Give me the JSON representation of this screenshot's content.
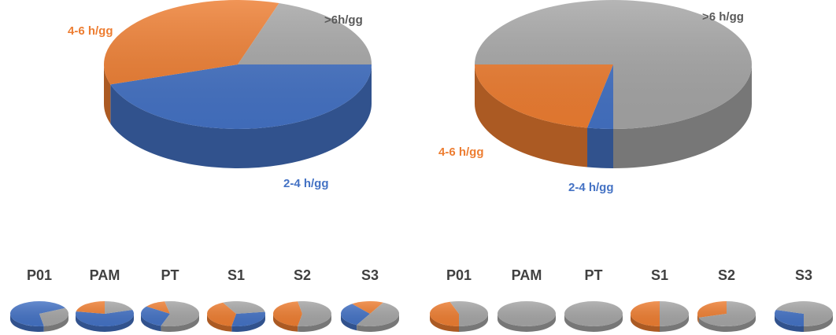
{
  "colors": {
    "2-4 h/gg": "#4472C4",
    "4-6 h/gg": "#ED7D31",
    ">6 h/gg": "#A5A5A5"
  },
  "chart_data": [
    {
      "type": "pie",
      "style": "3d",
      "slices": [
        {
          "label": "2-4 h/gg",
          "value": 45
        },
        {
          "label": "4-6 h/gg",
          "value": 35
        },
        {
          "label": ">6h/gg",
          "value": 20
        }
      ]
    },
    {
      "type": "pie",
      "style": "3d",
      "slices": [
        {
          "label": "2-4 h/gg",
          "value": 3
        },
        {
          "label": "4-6 h/gg",
          "value": 22
        },
        {
          "label": ">6 h/gg",
          "value": 75
        }
      ]
    },
    {
      "type": "pie",
      "title": "P01",
      "slices": [
        {
          "label": "2-4 h/gg",
          "value": 70
        },
        {
          "label": "4-6 h/gg",
          "value": 0
        },
        {
          "label": ">6 h/gg",
          "value": 30
        }
      ]
    },
    {
      "type": "pie",
      "title": "PAM",
      "slices": [
        {
          "label": "2-4 h/gg",
          "value": 58
        },
        {
          "label": "4-6 h/gg",
          "value": 22
        },
        {
          "label": ">6 h/gg",
          "value": 20
        }
      ]
    },
    {
      "type": "pie",
      "title": "PT",
      "slices": [
        {
          "label": "2-4 h/gg",
          "value": 30
        },
        {
          "label": "4-6 h/gg",
          "value": 12
        },
        {
          "label": ">6 h/gg",
          "value": 58
        }
      ]
    },
    {
      "type": "pie",
      "title": "S1",
      "slices": [
        {
          "label": "2-4 h/gg",
          "value": 30
        },
        {
          "label": "4-6 h/gg",
          "value": 40
        },
        {
          "label": ">6 h/gg",
          "value": 30
        }
      ]
    },
    {
      "type": "pie",
      "title": "S2",
      "slices": [
        {
          "label": "2-4 h/gg",
          "value": 0
        },
        {
          "label": "4-6 h/gg",
          "value": 45
        },
        {
          "label": ">6 h/gg",
          "value": 55
        }
      ]
    },
    {
      "type": "pie",
      "title": "S3",
      "slices": [
        {
          "label": "2-4 h/gg",
          "value": 32
        },
        {
          "label": "4-6 h/gg",
          "value": 18
        },
        {
          "label": ">6 h/gg",
          "value": 50
        }
      ]
    },
    {
      "type": "pie",
      "title": "P01",
      "slices": [
        {
          "label": "2-4 h/gg",
          "value": 0
        },
        {
          "label": "4-6 h/gg",
          "value": 45
        },
        {
          "label": ">6 h/gg",
          "value": 55
        }
      ]
    },
    {
      "type": "pie",
      "title": "PAM",
      "slices": [
        {
          "label": "2-4 h/gg",
          "value": 0
        },
        {
          "label": "4-6 h/gg",
          "value": 0
        },
        {
          "label": ">6 h/gg",
          "value": 100
        }
      ]
    },
    {
      "type": "pie",
      "title": "PT",
      "slices": [
        {
          "label": "2-4 h/gg",
          "value": 0
        },
        {
          "label": "4-6 h/gg",
          "value": 0
        },
        {
          "label": ">6 h/gg",
          "value": 100
        }
      ]
    },
    {
      "type": "pie",
      "title": "S1",
      "slices": [
        {
          "label": "2-4 h/gg",
          "value": 0
        },
        {
          "label": "4-6 h/gg",
          "value": 50
        },
        {
          "label": ">6 h/gg",
          "value": 50
        }
      ]
    },
    {
      "type": "pie",
      "title": "S2",
      "slices": [
        {
          "label": "2-4 h/gg",
          "value": 0
        },
        {
          "label": "4-6 h/gg",
          "value": 30
        },
        {
          "label": ">6 h/gg",
          "value": 70
        }
      ]
    },
    {
      "type": "pie",
      "title": "S3",
      "slices": [
        {
          "label": "2-4 h/gg",
          "value": 30
        },
        {
          "label": "4-6 h/gg",
          "value": 0
        },
        {
          "label": ">6 h/gg",
          "value": 70
        }
      ]
    }
  ]
}
